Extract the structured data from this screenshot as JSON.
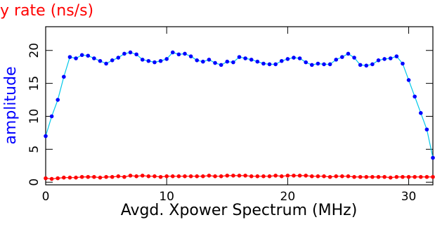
{
  "chart_data": {
    "type": "scatter-line",
    "title": "y rate (ns/s)",
    "title_color": "#ff0000",
    "ylabel": "amplitude",
    "ylabel_color": "#0000ff",
    "xlabel": "Avgd. Xpower Spectrum (MHz)",
    "xlim": [
      0,
      32
    ],
    "ylim": [
      -0.4,
      23.6
    ],
    "xticks": [
      0,
      10,
      20,
      30
    ],
    "yticks": [
      0,
      5,
      10,
      15,
      20
    ],
    "x": [
      0,
      0.5,
      1,
      1.5,
      2,
      2.5,
      3,
      3.5,
      4,
      4.5,
      5,
      5.5,
      6,
      6.5,
      7,
      7.5,
      8,
      8.5,
      9,
      9.5,
      10,
      10.5,
      11,
      11.5,
      12,
      12.5,
      13,
      13.5,
      14,
      14.5,
      15,
      15.5,
      16,
      16.5,
      17,
      17.5,
      18,
      18.5,
      19,
      19.5,
      20,
      20.5,
      21,
      21.5,
      22,
      22.5,
      23,
      23.5,
      24,
      24.5,
      25,
      25.5,
      26,
      26.5,
      27,
      27.5,
      28,
      28.5,
      29,
      29.5,
      30,
      30.5,
      31,
      31.5,
      32
    ],
    "series": [
      {
        "color": "#0000ff",
        "line_color": "#00c8e8",
        "values": [
          7,
          10,
          12.5,
          16,
          19,
          18.8,
          19.3,
          19.2,
          18.8,
          18.4,
          18,
          18.5,
          18.9,
          19.5,
          19.7,
          19.4,
          18.6,
          18.4,
          18.2,
          18.4,
          18.7,
          19.7,
          19.4,
          19.5,
          19.1,
          18.5,
          18.3,
          18.6,
          18.1,
          17.8,
          18.3,
          18.2,
          19,
          18.8,
          18.6,
          18.3,
          18,
          17.9,
          17.9,
          18.4,
          18.7,
          18.9,
          18.8,
          18.2,
          17.8,
          18,
          17.9,
          17.9,
          18.6,
          19,
          19.5,
          18.9,
          17.8,
          17.7,
          17.9,
          18.5,
          18.7,
          18.8,
          19.1,
          18,
          15.5,
          13,
          10.5,
          8,
          3.7
        ]
      },
      {
        "color": "#ff0000",
        "line_color": "#ff0000",
        "values": [
          0.6,
          0.5,
          0.6,
          0.7,
          0.7,
          0.7,
          0.8,
          0.8,
          0.8,
          0.7,
          0.8,
          0.8,
          0.9,
          0.8,
          1,
          0.9,
          1,
          0.9,
          0.9,
          0.8,
          0.9,
          0.9,
          0.9,
          0.9,
          0.9,
          0.9,
          0.9,
          1,
          0.9,
          0.9,
          1,
          1,
          1,
          1,
          0.9,
          0.9,
          0.9,
          0.9,
          1,
          0.9,
          1,
          1,
          1,
          1,
          0.9,
          0.9,
          0.9,
          0.8,
          0.9,
          0.9,
          0.9,
          0.8,
          0.8,
          0.8,
          0.8,
          0.8,
          0.8,
          0.7,
          0.8,
          0.8,
          0.8,
          0.8,
          0.8,
          0.8,
          0.8
        ]
      }
    ]
  }
}
